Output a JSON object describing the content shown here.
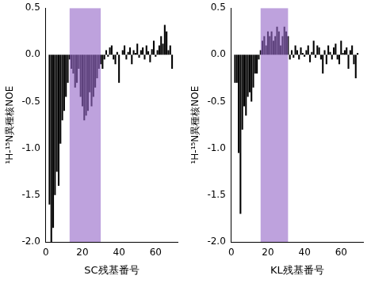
{
  "chart_data": [
    {
      "type": "bar",
      "xlabel": "SC残基番号",
      "ylabel": "¹H-¹⁵N異種核NOE",
      "x": [
        2,
        3,
        4,
        5,
        6,
        7,
        8,
        9,
        10,
        11,
        12,
        13,
        14,
        15,
        16,
        17,
        18,
        19,
        20,
        21,
        22,
        23,
        24,
        25,
        26,
        27,
        28,
        29,
        30,
        31,
        32,
        33,
        34,
        35,
        36,
        37,
        38,
        39,
        40,
        41,
        42,
        43,
        44,
        45,
        46,
        47,
        48,
        49,
        50,
        51,
        52,
        53,
        54,
        55,
        56,
        57,
        58,
        59,
        60,
        61,
        62,
        63,
        64,
        65,
        66,
        67,
        68,
        69
      ],
      "values": [
        -1.6,
        -2.0,
        -1.85,
        -1.5,
        -1.25,
        -1.4,
        -0.95,
        -0.7,
        -0.6,
        -0.45,
        -0.3,
        -0.05,
        -0.15,
        -0.2,
        -0.35,
        -0.3,
        -0.15,
        -0.45,
        -0.55,
        -0.7,
        -0.65,
        -0.6,
        -0.4,
        -0.55,
        -0.45,
        -0.35,
        -0.25,
        -0.15,
        -0.1,
        -0.15,
        -0.05,
        0.05,
        -0.02,
        0.08,
        0.1,
        -0.05,
        -0.1,
        0.03,
        -0.3,
        0.0,
        0.05,
        0.1,
        -0.05,
        0.03,
        0.08,
        -0.1,
        0.05,
        0.02,
        0.12,
        -0.03,
        0.05,
        0.08,
        -0.05,
        0.1,
        0.04,
        -0.08,
        0.06,
        0.15,
        -0.02,
        0.05,
        0.1,
        0.2,
        0.12,
        0.32,
        0.25,
        0.05,
        0.1,
        -0.15
      ],
      "color": "#000000",
      "xlim": [
        0,
        72
      ],
      "xticks": [
        0,
        20,
        40,
        60
      ],
      "ylim": [
        -2,
        0.5
      ],
      "yticks": [
        {
          "value": -2,
          "label": "-2.0"
        },
        {
          "value": -1.5,
          "label": "-1.5"
        },
        {
          "value": -1,
          "label": "-1.0"
        },
        {
          "value": -0.5,
          "label": "-0.5"
        },
        {
          "value": 0,
          "label": "0.0"
        },
        {
          "value": 0.5,
          "label": "0.5"
        }
      ],
      "grid": false,
      "shaded_range": [
        13,
        30
      ]
    },
    {
      "type": "bar",
      "xlabel": "KL残基番号",
      "ylabel": "¹H-¹⁵N異種核NOE",
      "x": [
        2,
        3,
        4,
        5,
        6,
        7,
        8,
        9,
        10,
        11,
        12,
        13,
        14,
        15,
        16,
        17,
        18,
        19,
        20,
        21,
        22,
        23,
        24,
        25,
        26,
        27,
        28,
        29,
        30,
        31,
        32,
        33,
        34,
        35,
        36,
        37,
        38,
        39,
        40,
        41,
        42,
        43,
        44,
        45,
        46,
        47,
        48,
        49,
        50,
        51,
        52,
        53,
        54,
        55,
        56,
        57,
        58,
        59,
        60,
        61,
        62,
        63,
        64,
        65,
        66,
        67,
        68,
        69
      ],
      "values": [
        -0.3,
        -0.3,
        -1.05,
        -1.7,
        -0.8,
        -0.55,
        -0.65,
        -0.45,
        -0.4,
        -0.5,
        -0.35,
        -0.2,
        -0.2,
        -0.05,
        0.05,
        0.15,
        0.2,
        0.1,
        0.25,
        0.2,
        0.25,
        0.15,
        0.2,
        0.3,
        0.25,
        0.1,
        0.2,
        0.3,
        0.25,
        0.2,
        -0.05,
        0.05,
        -0.03,
        0.1,
        0.05,
        -0.05,
        0.08,
        0.02,
        -0.02,
        0.05,
        0.1,
        -0.08,
        0.03,
        0.15,
        -0.03,
        0.1,
        0.08,
        -0.05,
        -0.2,
        0.05,
        -0.1,
        0.1,
        0.03,
        -0.05,
        0.08,
        0.12,
        -0.05,
        -0.1,
        0.15,
        0.02,
        0.05,
        0.08,
        -0.15,
        0.05,
        0.1,
        -0.1,
        -0.25,
        0.02
      ],
      "color": "#000000",
      "xlim": [
        0,
        72
      ],
      "xticks": [
        0,
        20,
        40,
        60
      ],
      "ylim": [
        -2,
        0.5
      ],
      "yticks": [
        {
          "value": -2,
          "label": "-2.0"
        },
        {
          "value": -1.5,
          "label": "-1.5"
        },
        {
          "value": -1,
          "label": "-1.0"
        },
        {
          "value": -0.5,
          "label": "-0.5"
        },
        {
          "value": 0,
          "label": "0.0"
        },
        {
          "value": 0.5,
          "label": "0.5"
        }
      ],
      "grid": false,
      "shaded_range": [
        16,
        31
      ]
    }
  ]
}
